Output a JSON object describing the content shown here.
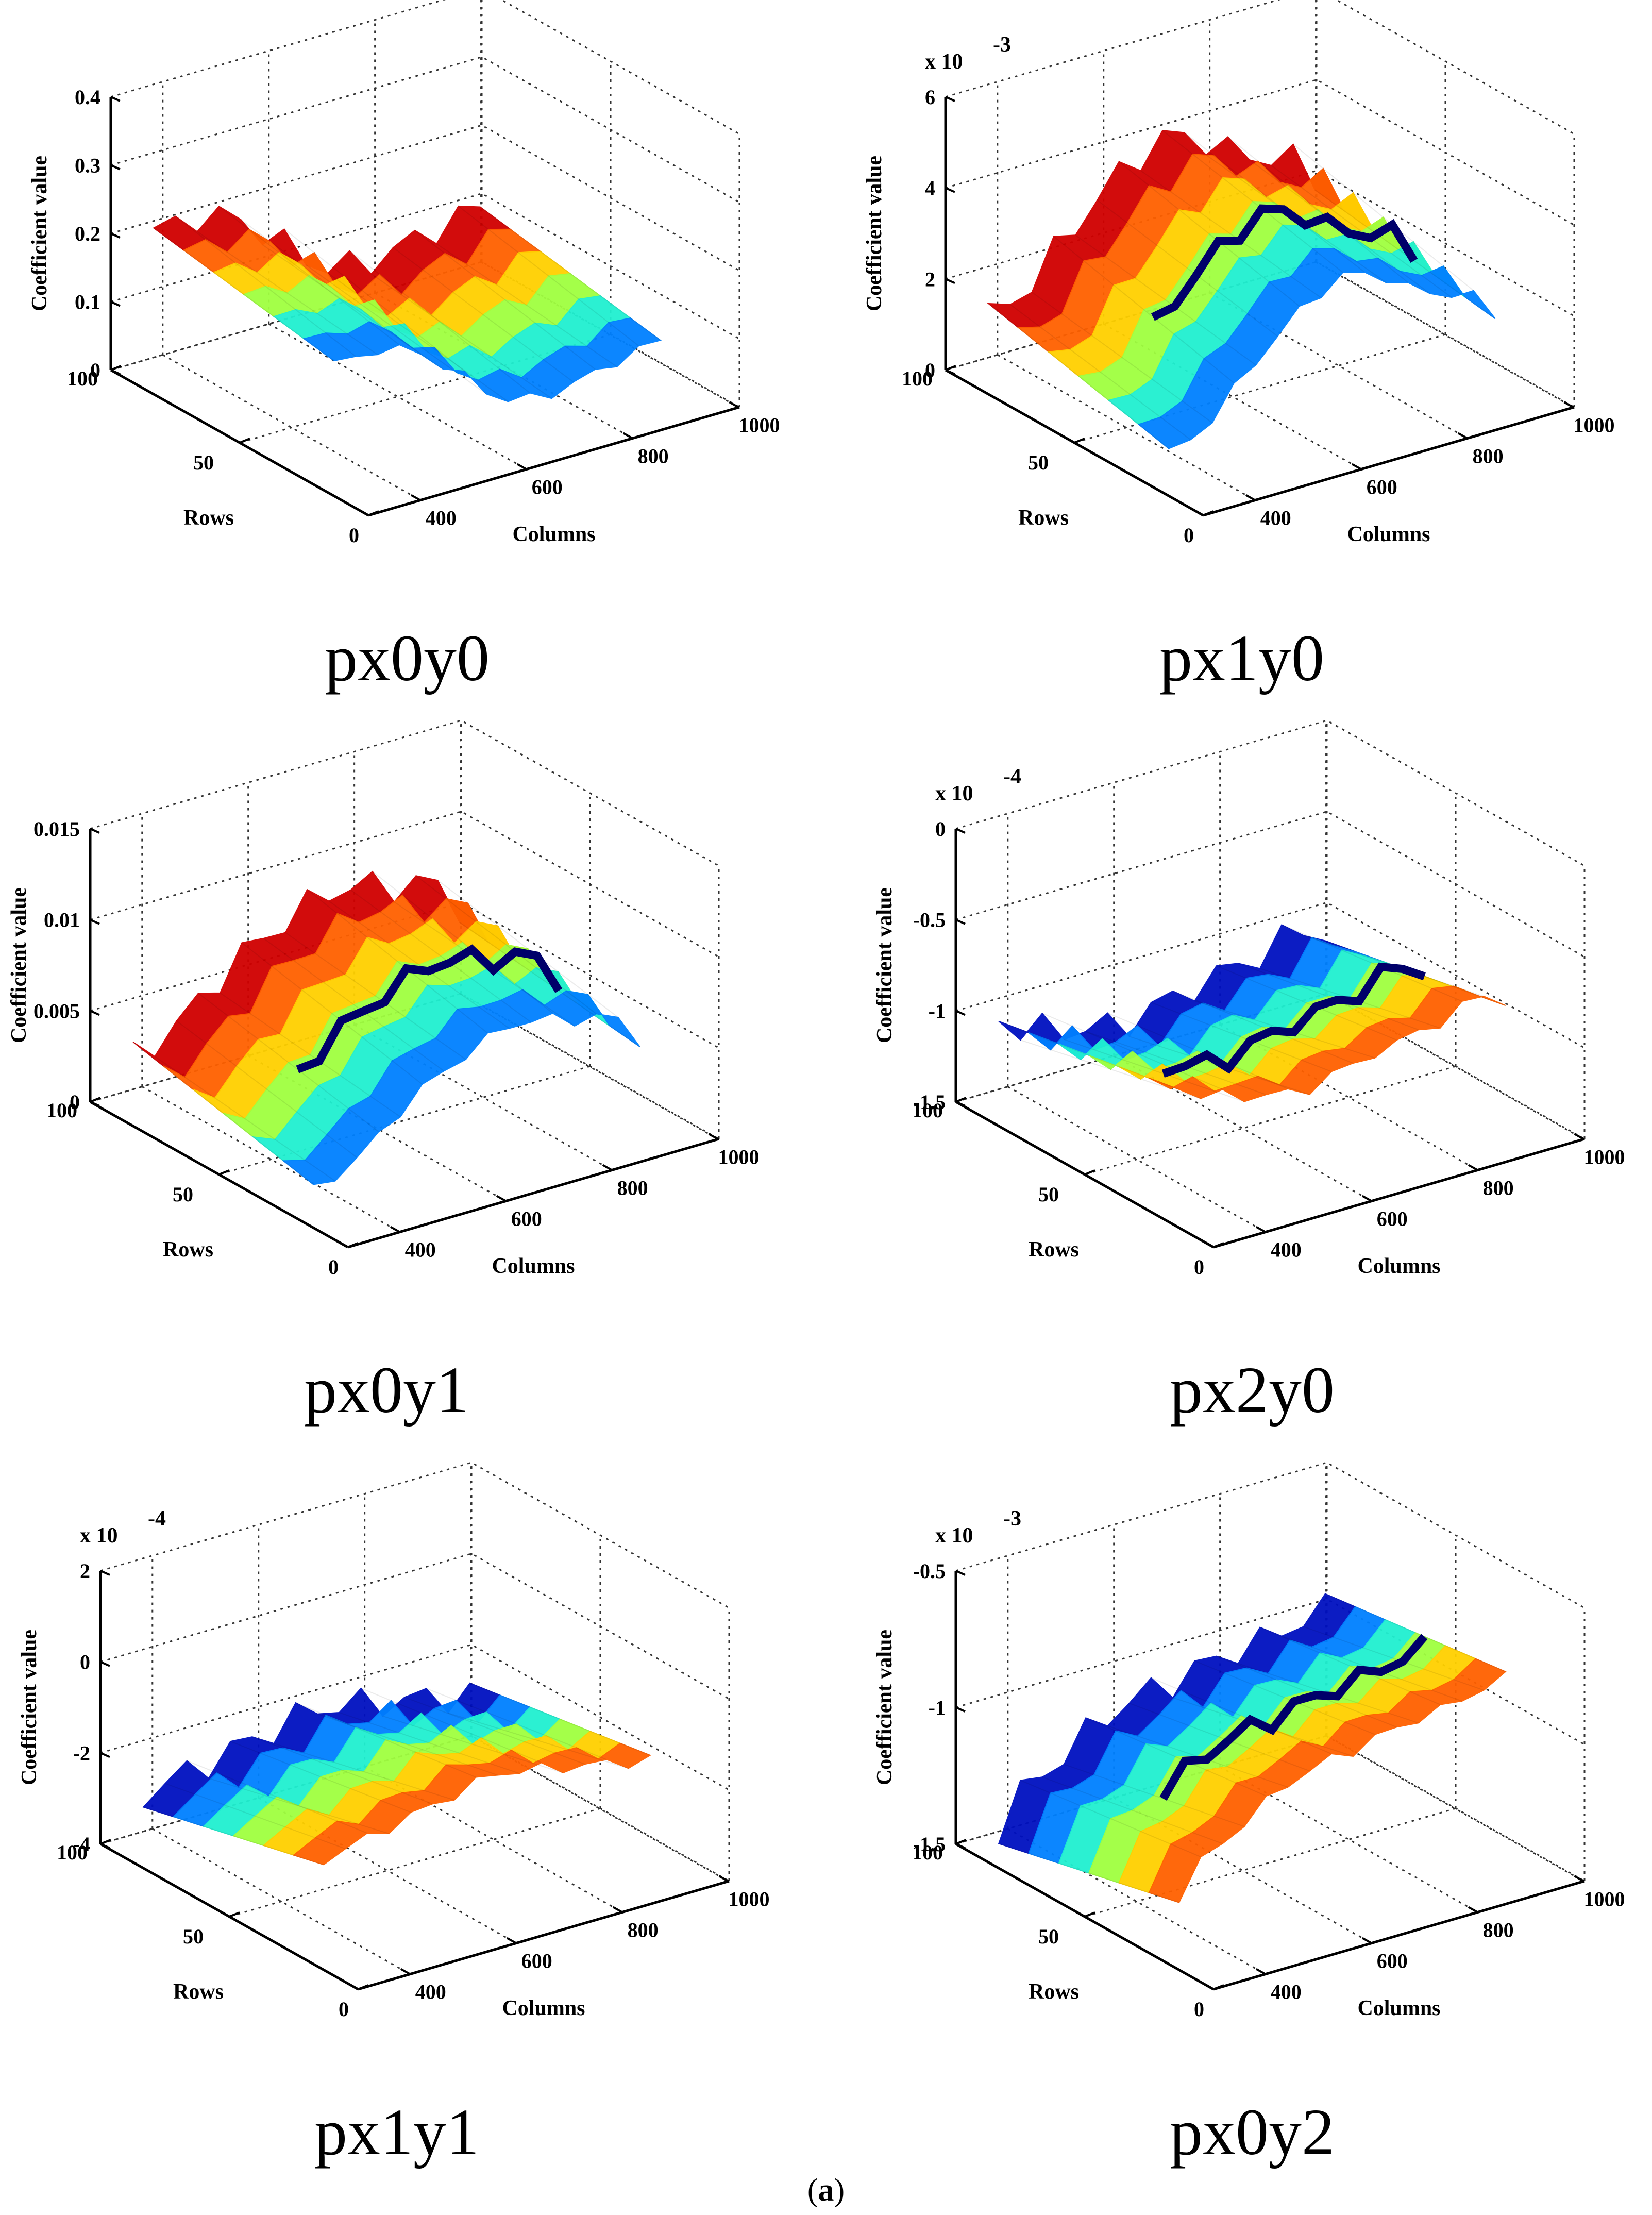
{
  "figure": {
    "sublabel_prefix": "(",
    "sublabel_letter": "a",
    "sublabel_suffix": ")"
  },
  "chart_data": [
    {
      "type": "surface",
      "title": "px0y0",
      "xlabel": "Columns",
      "ylabel": "Rows",
      "zlabel": "Coefficient value",
      "xticks": [
        "400",
        "600",
        "800",
        "1000"
      ],
      "yticks": [
        "0",
        "50",
        "100"
      ],
      "zticks": [
        "0",
        "0.1",
        "0.2",
        "0.3",
        "0.4"
      ],
      "zlim": [
        0,
        0.4
      ],
      "exponent_label": "",
      "surface_profile": [
        0.17,
        0.16,
        0.17,
        0.16,
        0.14,
        0.12,
        0.09,
        0.06,
        0.04,
        0.03,
        0.03,
        0.035,
        0.04,
        0.05,
        0.055,
        0.06
      ],
      "surface_spread": 0.13,
      "dark_band": false
    },
    {
      "type": "surface",
      "title": "px1y0",
      "xlabel": "Columns",
      "ylabel": "Rows",
      "zlabel": "Coefficient value",
      "xticks": [
        "400",
        "600",
        "800",
        "1000"
      ],
      "yticks": [
        "0",
        "50",
        "100"
      ],
      "zticks": [
        "0",
        "2",
        "4",
        "6"
      ],
      "zlim": [
        0,
        6
      ],
      "exponent_label": "x 10",
      "exponent_power": "-3",
      "surface_profile": [
        0.5,
        0.7,
        1.0,
        1.5,
        2.0,
        2.4,
        2.8,
        3.1,
        3.3,
        3.2,
        3.0,
        2.6,
        2.4,
        2.2,
        2.0,
        1.5
      ],
      "surface_spread": 2.2,
      "dark_band": true
    },
    {
      "type": "surface",
      "title": "px0y1",
      "xlabel": "Columns",
      "ylabel": "Rows",
      "zlabel": "Coefficient value",
      "xticks": [
        "400",
        "600",
        "800",
        "1000"
      ],
      "yticks": [
        "0",
        "50",
        "100"
      ],
      "zticks": [
        "0",
        "0.005",
        "0.01",
        "0.015"
      ],
      "zlim": [
        0,
        0.015
      ],
      "exponent_label": "",
      "surface_profile": [
        0.001,
        0.0015,
        0.002,
        0.003,
        0.004,
        0.0048,
        0.0055,
        0.006,
        0.0065,
        0.007,
        0.0068,
        0.0066,
        0.0062,
        0.006,
        0.0055,
        0.004
      ],
      "surface_spread": 0.005,
      "dark_band": true
    },
    {
      "type": "surface",
      "title": "px2y0",
      "xlabel": "Columns",
      "ylabel": "Rows",
      "zlabel": "Coefficient value",
      "xticks": [
        "400",
        "600",
        "800",
        "1000"
      ],
      "yticks": [
        "0",
        "50",
        "100"
      ],
      "zticks": [
        "-1.5",
        "-1",
        "-0.5",
        "0"
      ],
      "zlim": [
        -1.5,
        0
      ],
      "exponent_label": "x 10",
      "exponent_power": "-4",
      "surface_profile": [
        -0.85,
        -0.9,
        -0.95,
        -1.0,
        -1.0,
        -1.05,
        -1.05,
        -1.0,
        -1.0,
        -0.95,
        -0.95,
        -0.9,
        -0.9,
        -0.85,
        -0.8,
        -0.9
      ],
      "surface_spread": -0.55,
      "dark_band": true
    },
    {
      "type": "surface",
      "title": "px1y1",
      "xlabel": "Columns",
      "ylabel": "Rows",
      "zlabel": "Coefficient value",
      "xticks": [
        "400",
        "600",
        "800",
        "1000"
      ],
      "yticks": [
        "0",
        "50",
        "100"
      ],
      "zticks": [
        "-4",
        "-2",
        "0",
        "2"
      ],
      "zlim": [
        -4,
        2
      ],
      "exponent_label": "x 10",
      "exponent_power": "-4",
      "surface_profile": [
        -2.0,
        -1.9,
        -1.8,
        -1.7,
        -1.6,
        -1.5,
        -1.4,
        -1.3,
        -1.2,
        -1.3,
        -1.4,
        -1.5,
        -1.6,
        -1.7,
        -1.8,
        -1.9
      ],
      "surface_spread": -2.3,
      "dark_band": false
    },
    {
      "type": "surface",
      "title": "px0y2",
      "xlabel": "Columns",
      "ylabel": "Rows",
      "zlabel": "Coefficient value",
      "xticks": [
        "400",
        "600",
        "800",
        "1000"
      ],
      "yticks": [
        "0",
        "50",
        "100"
      ],
      "zticks": [
        "-1.5",
        "-1",
        "-0.5"
      ],
      "zlim": [
        -1.5,
        -0.5
      ],
      "exponent_label": "x 10",
      "exponent_power": "-3",
      "surface_profile": [
        -1.3,
        -1.2,
        -1.15,
        -1.1,
        -1.05,
        -1.0,
        -0.98,
        -0.96,
        -0.95,
        -0.93,
        -0.92,
        -0.9,
        -0.9,
        -0.88,
        -0.86,
        -0.85
      ],
      "surface_spread": -0.35,
      "dark_band": true
    }
  ]
}
